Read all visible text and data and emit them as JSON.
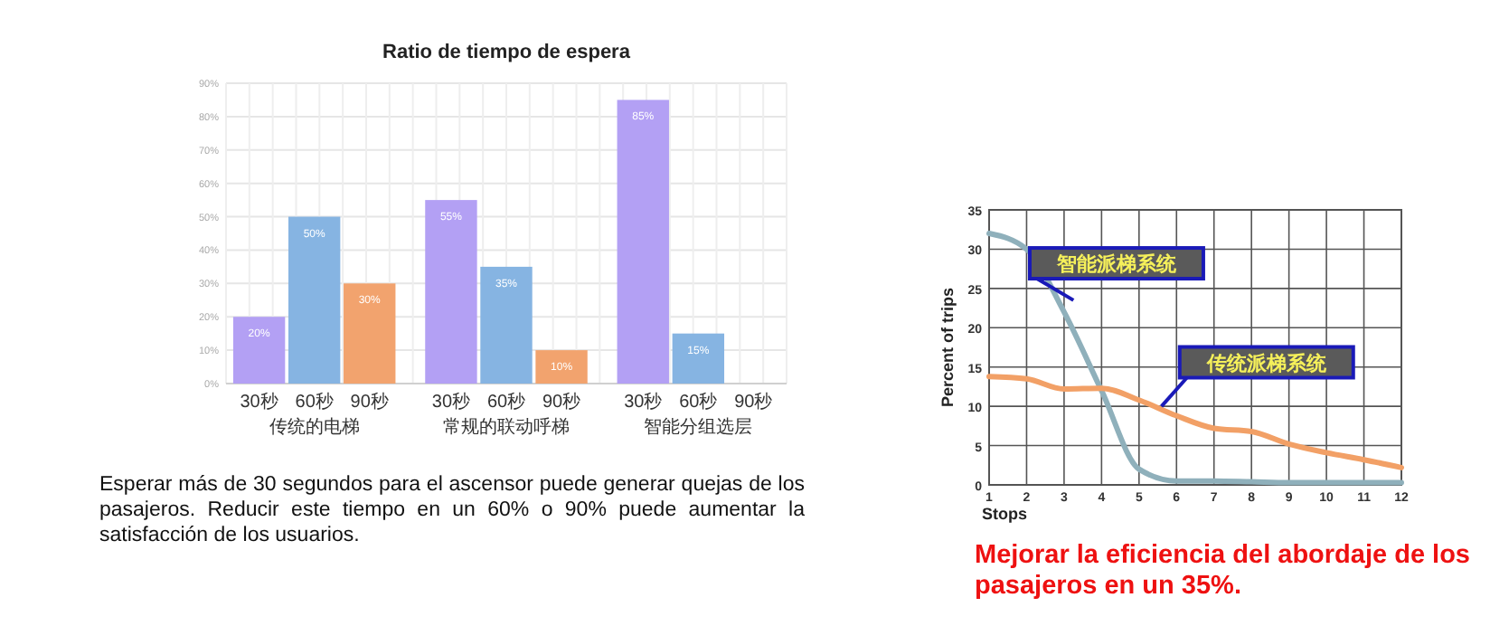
{
  "chart_data": [
    {
      "type": "bar",
      "title": "Ratio de tiempo de espera",
      "categories": [
        "传统的电梯",
        "常规的联动呼梯",
        "智能分组选层"
      ],
      "series": [
        {
          "name": "30秒",
          "color": "#b3a0f4",
          "values": [
            20,
            55,
            85
          ],
          "value_labels": [
            "20%",
            "55%",
            "85%"
          ]
        },
        {
          "name": "60秒",
          "color": "#86b4e2",
          "values": [
            50,
            35,
            15
          ],
          "value_labels": [
            "50%",
            "35%",
            "15%"
          ]
        },
        {
          "name": "90秒",
          "color": "#f2a36e",
          "values": [
            30,
            10,
            null
          ],
          "value_labels": [
            "30%",
            "10%",
            null
          ]
        }
      ],
      "ylim": [
        0,
        90
      ],
      "yticks": [
        {
          "value": 0,
          "label": "0%"
        },
        {
          "value": 10,
          "label": "10%"
        },
        {
          "value": 20,
          "label": "20%"
        },
        {
          "value": 30,
          "label": "30%"
        },
        {
          "value": 40,
          "label": "40%"
        },
        {
          "value": 50,
          "label": "50%"
        },
        {
          "value": 60,
          "label": "60%"
        },
        {
          "value": 70,
          "label": "70%"
        },
        {
          "value": 80,
          "label": "80%"
        },
        {
          "value": 90,
          "label": "90%"
        }
      ],
      "grid": true,
      "annotations": [
        "Esperar más de 30 segundos para el ascensor puede generar quejas de los pasajeros. Reducir este tiempo en un 60% o 90% puede aumentar la satisfacción de los usuarios."
      ]
    },
    {
      "type": "line",
      "xlabel": "Stops",
      "ylabel": "Percent of trips",
      "x": [
        1,
        2,
        3,
        4,
        5,
        6,
        7,
        8,
        9,
        10,
        11,
        12
      ],
      "series": [
        {
          "name": "智能派梯系统",
          "color": "#8fb0bb",
          "values": [
            32,
            30,
            22,
            12,
            2,
            0.5,
            0.5,
            0.4,
            0.3,
            0.3,
            0.3,
            0.3
          ]
        },
        {
          "name": "传统派梯系统",
          "color": "#f2a066",
          "values": [
            13.8,
            13.5,
            12.2,
            12.3,
            10.8,
            8.8,
            7.2,
            6.8,
            5.2,
            4.1,
            3.2,
            2.2
          ]
        }
      ],
      "xlim": [
        1,
        12
      ],
      "xticks": [
        1,
        2,
        3,
        4,
        5,
        6,
        7,
        8,
        9,
        10,
        11,
        12
      ],
      "ylim": [
        0,
        35
      ],
      "yticks": [
        0,
        5,
        10,
        15,
        20,
        25,
        30,
        35
      ],
      "grid": true,
      "marker": "none",
      "line_style": "solid",
      "annotations": [
        "Mejorar la eficiencia del abordaje de los pasajeros en un 35%."
      ]
    }
  ]
}
